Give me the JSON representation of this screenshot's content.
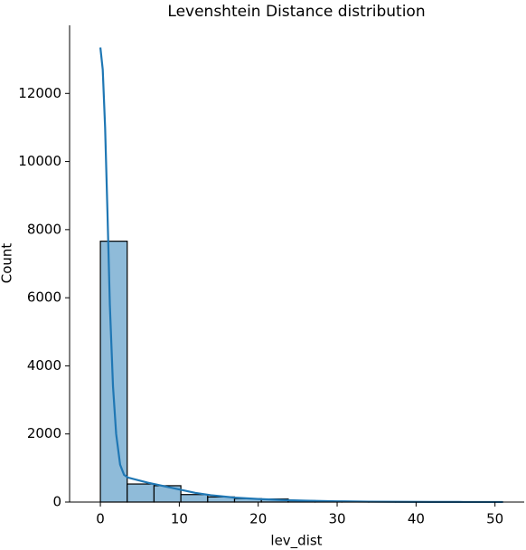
{
  "chart_data": {
    "type": "histogram",
    "title": "Levenshtein Distance distribution",
    "x_label": "lev_dist",
    "y_label": "Count",
    "bins": [
      0,
      3.4,
      6.8,
      10.2,
      13.6,
      17,
      20.4,
      23.8,
      27.2,
      30.6,
      34,
      37.4,
      40.8,
      44.2,
      47.6,
      51
    ],
    "values": [
      7660,
      530,
      480,
      220,
      150,
      100,
      90,
      40,
      25,
      15,
      10,
      5,
      3,
      2,
      1
    ],
    "color": "#8fbbd9",
    "edge_color": "#000000",
    "kde": {
      "color": "#1f77b4",
      "x": [
        0,
        0.3,
        0.6,
        0.9,
        1.2,
        1.6,
        2,
        2.5,
        3,
        3.5,
        4,
        5,
        6,
        7,
        8,
        10,
        12,
        14,
        17,
        20,
        23,
        26,
        30,
        34,
        38,
        42,
        46,
        51
      ],
      "values": [
        13350,
        12700,
        11000,
        8500,
        5800,
        3400,
        2000,
        1100,
        800,
        720,
        690,
        630,
        570,
        520,
        470,
        370,
        270,
        200,
        130,
        90,
        60,
        40,
        22,
        12,
        7,
        4,
        2,
        1
      ]
    },
    "xlim": [
      -3.9,
      53.7
    ],
    "ylim": [
      0,
      14000
    ],
    "xticks": [
      0,
      10,
      20,
      30,
      40,
      50
    ],
    "yticks": [
      0,
      2000,
      4000,
      6000,
      8000,
      10000,
      12000
    ]
  }
}
